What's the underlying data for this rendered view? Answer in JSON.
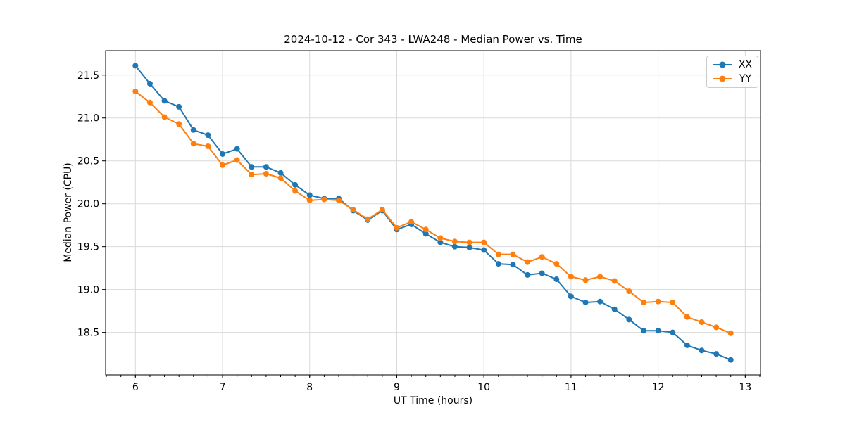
{
  "chart_data": {
    "type": "line",
    "title": "2024-10-12 - Cor 343 - LWA248 - Median Power vs. Time",
    "xlabel": "UT Time (hours)",
    "ylabel": "Median Power (CPU)",
    "xlim": [
      5.658,
      13.175
    ],
    "ylim": [
      18.005,
      21.785
    ],
    "x_ticks": [
      6,
      7,
      8,
      9,
      10,
      11,
      12,
      13
    ],
    "y_ticks": [
      18.5,
      19.0,
      19.5,
      20.0,
      20.5,
      21.0,
      21.5
    ],
    "x_minor_tick_step": 0.166667,
    "grid": true,
    "legend_position": "upper right",
    "background_color": "#ffffff",
    "grid_color": "#d9d9d9",
    "axis_color": "#000000",
    "x": [
      6.0,
      6.1667,
      6.3333,
      6.5,
      6.6667,
      6.8333,
      7.0,
      7.1667,
      7.3333,
      7.5,
      7.6667,
      7.8333,
      8.0,
      8.1667,
      8.3333,
      8.5,
      8.6667,
      8.8333,
      9.0,
      9.1667,
      9.3333,
      9.5,
      9.6667,
      9.8333,
      10.0,
      10.1667,
      10.3333,
      10.5,
      10.6667,
      10.8333,
      11.0,
      11.1667,
      11.3333,
      11.5,
      11.6667,
      11.8333,
      12.0,
      12.1667,
      12.3333,
      12.5,
      12.6667,
      12.8333
    ],
    "series": [
      {
        "name": "XX",
        "color": "#1f77b4",
        "values": [
          21.61,
          21.4,
          21.2,
          21.13,
          20.86,
          20.8,
          20.58,
          20.64,
          20.43,
          20.43,
          20.36,
          20.22,
          20.1,
          20.06,
          20.06,
          19.92,
          19.81,
          19.92,
          19.7,
          19.76,
          19.65,
          19.55,
          19.5,
          19.49,
          19.46,
          19.3,
          19.29,
          19.17,
          19.19,
          19.12,
          18.92,
          18.85,
          18.86,
          18.77,
          18.65,
          18.52,
          18.52,
          18.5,
          18.35,
          18.29,
          18.25,
          18.18
        ]
      },
      {
        "name": "YY",
        "color": "#ff7f0e",
        "values": [
          21.31,
          21.18,
          21.01,
          20.93,
          20.7,
          20.67,
          20.45,
          20.51,
          20.34,
          20.35,
          20.3,
          20.15,
          20.04,
          20.05,
          20.04,
          19.93,
          19.82,
          19.93,
          19.72,
          19.79,
          19.7,
          19.6,
          19.56,
          19.55,
          19.55,
          19.41,
          19.41,
          19.32,
          19.38,
          19.3,
          19.15,
          19.11,
          19.15,
          19.1,
          18.98,
          18.85,
          18.86,
          18.85,
          18.68,
          18.62,
          18.56,
          18.49
        ]
      }
    ]
  }
}
